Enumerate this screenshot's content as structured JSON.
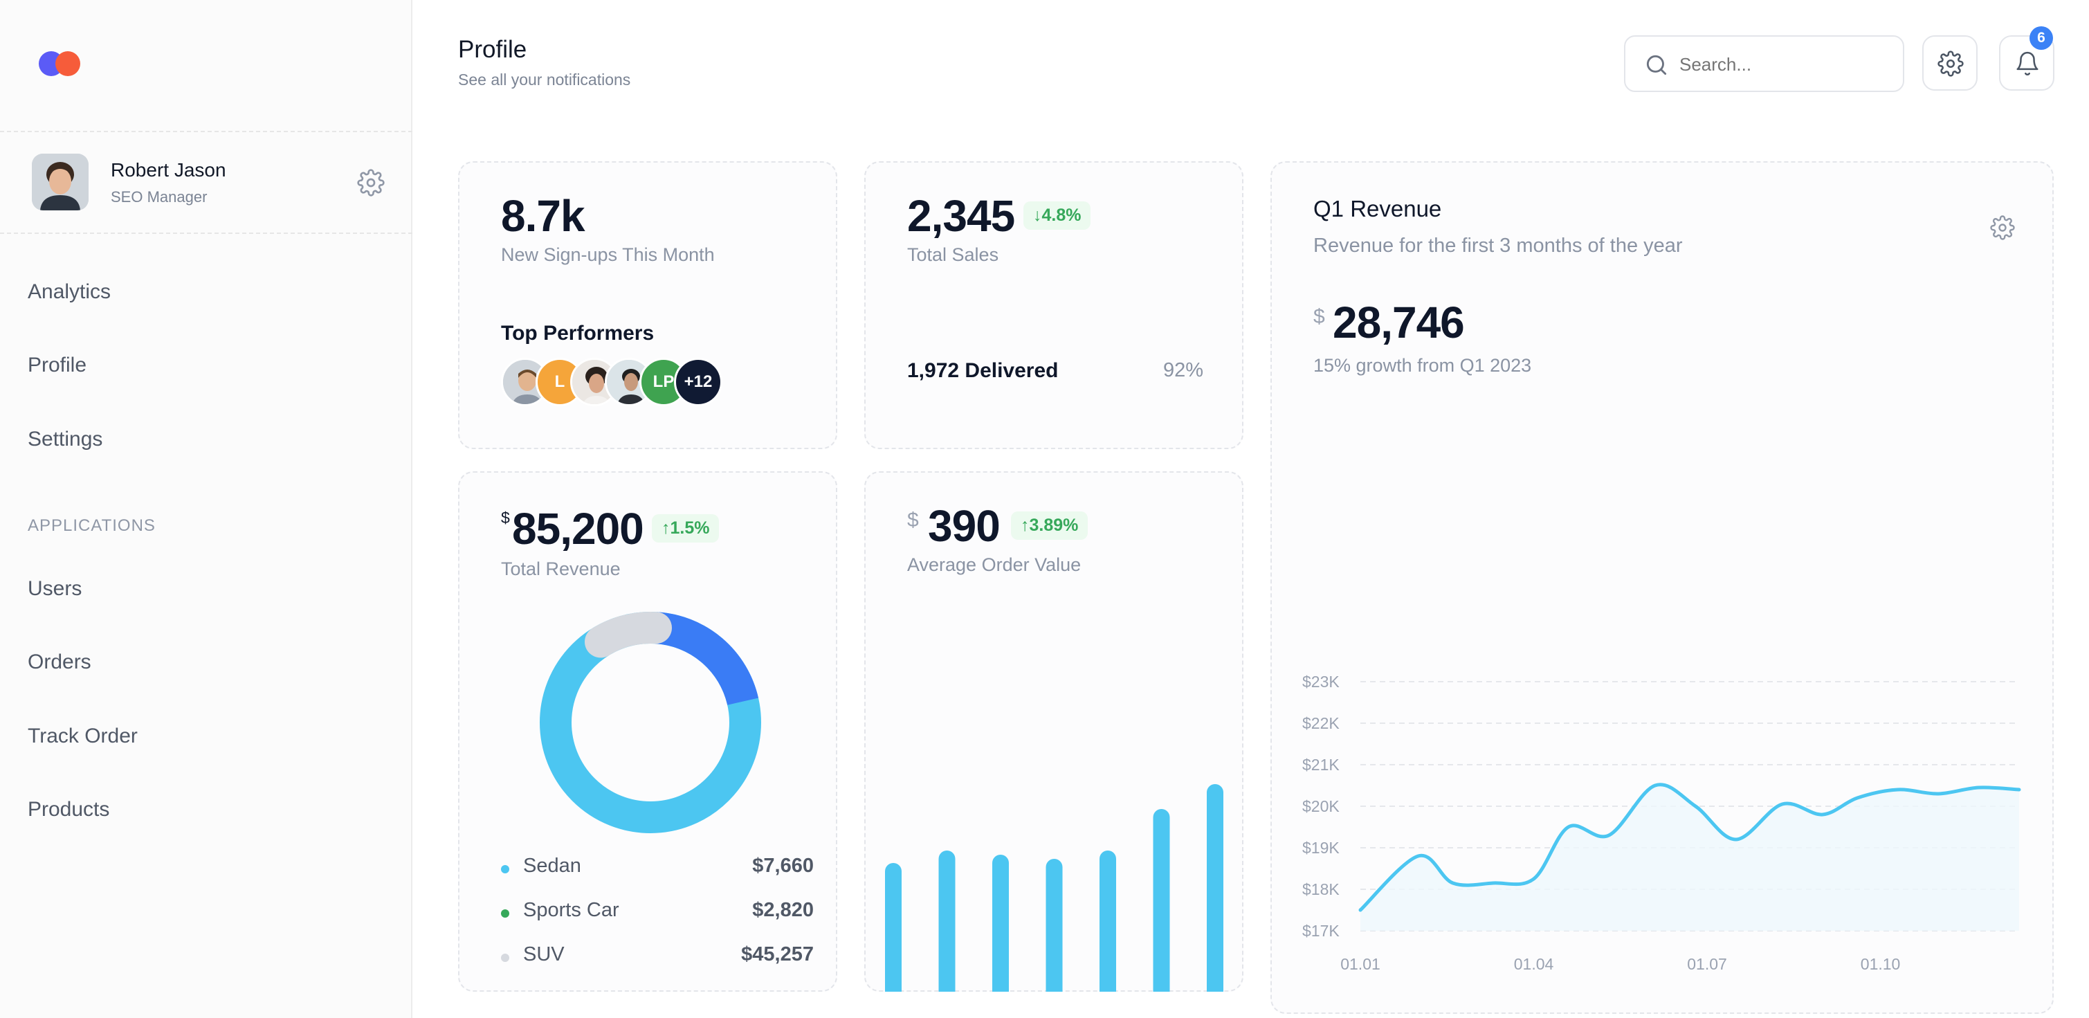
{
  "colors": {
    "accent": "#4cc6f1",
    "brand_blue": "#5b5bf6",
    "brand_orange": "#f65c3a",
    "donut_blue": "#3a7cf5",
    "donut_grey": "#d6d9df",
    "positive": "#36a85a"
  },
  "sidebar": {
    "user": {
      "name": "Robert Jason",
      "role": "SEO Manager"
    },
    "nav": [
      "Analytics",
      "Profile",
      "Settings"
    ],
    "section_title": "APPLICATIONS",
    "apps": [
      "Users",
      "Orders",
      "Track Order",
      "Products"
    ]
  },
  "header": {
    "title": "Profile",
    "subtitle": "See all your notifications",
    "search_placeholder": "Search...",
    "notification_count": "6"
  },
  "signups": {
    "value": "8.7k",
    "label": "New Sign-ups This Month",
    "performers_title": "Top Performers",
    "performers": [
      {
        "kind": "photo",
        "initials": ""
      },
      {
        "kind": "initials",
        "initials": "L"
      },
      {
        "kind": "photo",
        "initials": ""
      },
      {
        "kind": "photo",
        "initials": ""
      },
      {
        "kind": "initials",
        "initials": "LP"
      },
      {
        "kind": "more",
        "initials": "+12"
      }
    ]
  },
  "sales": {
    "value": "2,345",
    "change": "4.8%",
    "label": "Total Sales",
    "delivered": "1,972 Delivered",
    "percent_text": "92%",
    "percent": 0.92
  },
  "revenue": {
    "currency": "$",
    "value": "85,200",
    "change": "1.5%",
    "label": "Total Revenue",
    "segments": [
      {
        "name": "Sedan",
        "value": "$7,660",
        "color": "#4cc6f1"
      },
      {
        "name": "Sports Car",
        "value": "$2,820",
        "color": "#36a85a"
      },
      {
        "name": "SUV",
        "value": "$45,257",
        "color": "#d6d9df"
      }
    ]
  },
  "aov": {
    "currency": "$",
    "value": "390",
    "change": "3.89%",
    "label": "Average Order Value",
    "bars": [
      0.62,
      0.68,
      0.66,
      0.64,
      0.68,
      0.88,
      1.0
    ]
  },
  "q1": {
    "title": "Q1 Revenue",
    "subtitle": "Revenue for the first 3 months of the year",
    "currency": "$",
    "value": "28,746",
    "growth": "15% growth from Q1 2023"
  },
  "chart_data": {
    "type": "area",
    "title": "Q1 Revenue",
    "xlabel": "",
    "ylabel": "",
    "ylim": [
      17,
      23
    ],
    "y_ticks": [
      "$23K",
      "$22K",
      "$21K",
      "$20K",
      "$19K",
      "$18K",
      "$17K"
    ],
    "x_ticks": [
      "01.01",
      "01.04",
      "01.07",
      "01.10"
    ],
    "x": [
      0,
      1,
      1.6,
      2.3,
      3,
      3.6,
      4.3,
      5.1,
      5.8,
      6.5,
      7.3,
      8,
      8.6,
      9.3,
      10,
      10.7,
      11.4
    ],
    "values": [
      17.5,
      18.8,
      18.15,
      18.15,
      18.25,
      19.5,
      19.3,
      20.5,
      20,
      19.2,
      20.05,
      19.8,
      20.2,
      20.4,
      20.3,
      20.45,
      20.4
    ],
    "grid": true
  }
}
